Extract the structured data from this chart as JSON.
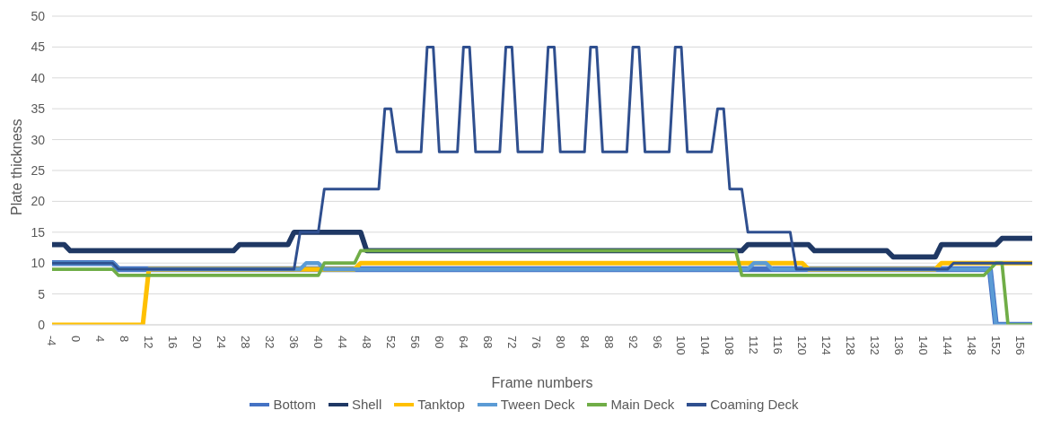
{
  "chart_data": {
    "type": "line",
    "xlabel": "Frame numbers",
    "ylabel": "Plate thickness",
    "xlim": [
      -4,
      158
    ],
    "xticks": [
      -4,
      0,
      4,
      8,
      12,
      16,
      20,
      24,
      28,
      32,
      36,
      40,
      44,
      48,
      52,
      56,
      60,
      64,
      68,
      72,
      76,
      80,
      84,
      88,
      92,
      96,
      100,
      104,
      108,
      112,
      116,
      120,
      124,
      128,
      132,
      136,
      140,
      144,
      148,
      152,
      156
    ],
    "ylim": [
      0,
      50
    ],
    "yticks": [
      0,
      5,
      10,
      15,
      20,
      25,
      30,
      35,
      40,
      45,
      50
    ],
    "grid": "y",
    "legend": "bottom",
    "marker": "none",
    "series": [
      {
        "name": "Bottom",
        "color": "#4472c4",
        "x": [
          -4,
          6,
          7,
          151,
          152,
          158
        ],
        "values": [
          10,
          10,
          9,
          9,
          0,
          0
        ]
      },
      {
        "name": "Shell",
        "color": "#1f3864",
        "x": [
          -4,
          -2,
          -1,
          26,
          27,
          35,
          36,
          47,
          48,
          110,
          111,
          121,
          122,
          134,
          135,
          142,
          143,
          152,
          153,
          158
        ],
        "values": [
          13,
          13,
          12,
          12,
          13,
          13,
          15,
          15,
          12,
          12,
          13,
          13,
          12,
          12,
          11,
          11,
          13,
          13,
          14,
          14
        ]
      },
      {
        "name": "Tanktop",
        "color": "#ffc000",
        "x": [
          -4,
          11,
          12,
          46,
          47,
          120,
          121,
          142,
          143,
          158
        ],
        "values": [
          0,
          0,
          9,
          9,
          10,
          10,
          9,
          9,
          10,
          10
        ]
      },
      {
        "name": "Tween Deck",
        "color": "#5b9bd5",
        "x": [
          -4,
          6,
          7,
          37,
          38,
          40,
          41,
          111,
          112,
          114,
          115,
          151,
          152,
          158
        ],
        "values": [
          10,
          10,
          9,
          9,
          10,
          10,
          9,
          9,
          10,
          10,
          9,
          9,
          0,
          0
        ]
      },
      {
        "name": "Main Deck",
        "color": "#70ad47",
        "x": [
          -4,
          6,
          7,
          40,
          41,
          46,
          47,
          109,
          110,
          150,
          152,
          153,
          154,
          158
        ],
        "values": [
          9,
          9,
          8,
          8,
          10,
          10,
          12,
          12,
          8,
          8,
          10,
          10,
          0,
          0
        ]
      },
      {
        "name": "Coaming Deck",
        "color": "#2f4f8f",
        "x": [
          -4,
          6,
          7,
          36,
          37,
          40,
          41,
          50,
          51,
          52,
          53,
          57,
          58,
          59,
          60,
          63,
          64,
          65,
          66,
          70,
          71,
          72,
          73,
          77,
          78,
          79,
          80,
          84,
          85,
          86,
          87,
          91,
          92,
          93,
          94,
          98,
          99,
          100,
          101,
          105,
          106,
          107,
          108,
          110,
          111,
          118,
          119,
          144,
          145,
          158
        ],
        "values": [
          10,
          10,
          9,
          9,
          15,
          15,
          22,
          22,
          35,
          35,
          28,
          28,
          45,
          45,
          28,
          28,
          45,
          45,
          28,
          28,
          45,
          45,
          28,
          28,
          45,
          45,
          28,
          28,
          45,
          45,
          28,
          28,
          45,
          45,
          28,
          28,
          45,
          45,
          28,
          28,
          35,
          35,
          22,
          22,
          15,
          15,
          9,
          9,
          10,
          10
        ]
      }
    ]
  }
}
